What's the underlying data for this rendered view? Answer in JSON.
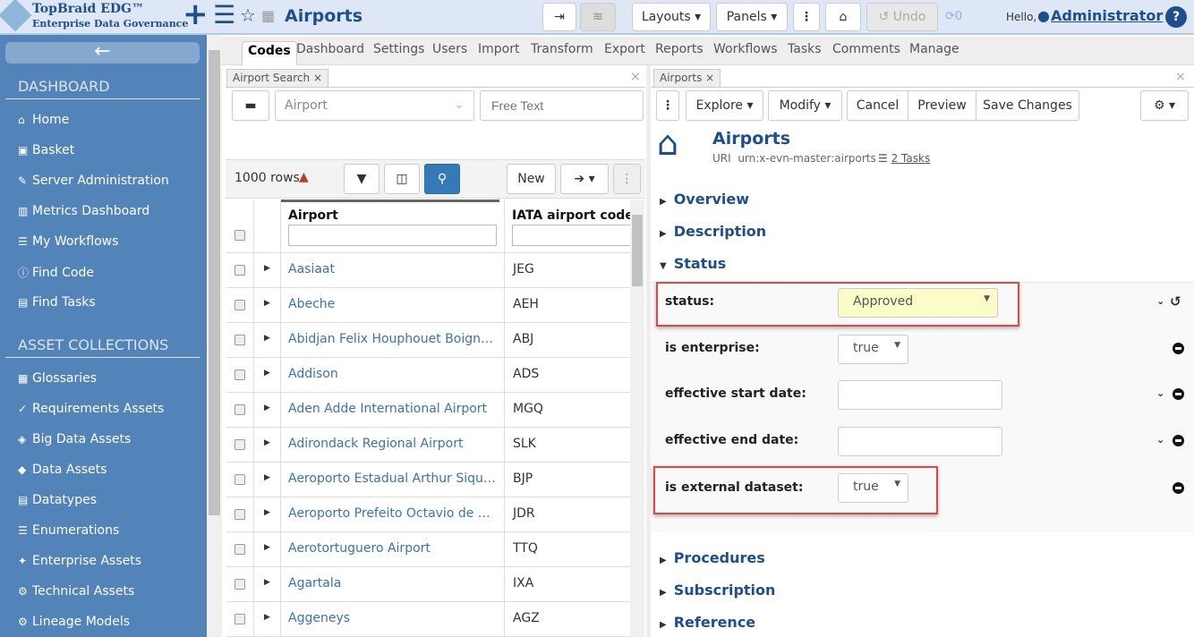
{
  "header": {
    "brand_line1": "TopBraid EDG™",
    "brand_line2": "Enterprise Data Governance",
    "title": "Airports",
    "layouts": "Layouts",
    "panels": "Panels",
    "undo": "Undo",
    "sync_count": "0",
    "hello": "Hello,",
    "user": "Administrator",
    "icons": [
      "plus-icon",
      "menu-icon",
      "star-icon",
      "grid-icon",
      "indent-icon",
      "layers-icon",
      "more-icon",
      "home-icon",
      "undo-icon",
      "sync-icon",
      "user-icon",
      "help-icon"
    ]
  },
  "sidebar": {
    "dashboard_heading": "DASHBOARD",
    "dashboard_items": [
      {
        "icon": "⌂",
        "label": "Home"
      },
      {
        "icon": "▣",
        "label": "Basket"
      },
      {
        "icon": "✎",
        "label": "Server Administration"
      },
      {
        "icon": "▥",
        "label": "Metrics Dashboard"
      },
      {
        "icon": "☰",
        "label": "My Workflows"
      },
      {
        "icon": "ⓘ",
        "label": "Find Code"
      },
      {
        "icon": "▤",
        "label": "Find Tasks"
      }
    ],
    "assets_heading": "ASSET COLLECTIONS",
    "asset_items": [
      {
        "icon": "▦",
        "label": "Glossaries"
      },
      {
        "icon": "✓",
        "label": "Requirements Assets"
      },
      {
        "icon": "◈",
        "label": "Big Data Assets"
      },
      {
        "icon": "◆",
        "label": "Data Assets"
      },
      {
        "icon": "▤",
        "label": "Datatypes"
      },
      {
        "icon": "☰",
        "label": "Enumerations"
      },
      {
        "icon": "✦",
        "label": "Enterprise Assets"
      },
      {
        "icon": "⚙",
        "label": "Technical Assets"
      },
      {
        "icon": "⚙",
        "label": "Lineage Models"
      }
    ]
  },
  "tabs": [
    "Codes",
    "Dashboard",
    "Settings",
    "Users",
    "Import",
    "Transform",
    "Export",
    "Reports",
    "Workflows",
    "Tasks",
    "Comments",
    "Manage"
  ],
  "search_panel": {
    "tab": "Airport Search",
    "type_value": "Airport",
    "free_text_placeholder": "Free Text",
    "row_count": "1000 rows",
    "new_label": "New",
    "columns": [
      "Airport",
      "IATA airport code"
    ],
    "rows": [
      {
        "name": "Aasiaat",
        "code": "JEG"
      },
      {
        "name": "Abeche",
        "code": "AEH"
      },
      {
        "name": "Abidjan Felix Houphouet Boigny International Airport",
        "code": "ABJ"
      },
      {
        "name": "Addison",
        "code": "ADS"
      },
      {
        "name": "Aden Adde International Airport",
        "code": "MGQ"
      },
      {
        "name": "Adirondack Regional Airport",
        "code": "SLK"
      },
      {
        "name": "Aeroporto Estadual Arthur Siqueira",
        "code": "BJP"
      },
      {
        "name": "Aeroporto Prefeito Octavio de Almeida Neves",
        "code": "JDR"
      },
      {
        "name": "Aerotortuguero Airport",
        "code": "TTQ"
      },
      {
        "name": "Agartala",
        "code": "IXA"
      },
      {
        "name": "Aggeneys",
        "code": "AGZ"
      }
    ]
  },
  "resource_panel": {
    "tab": "Airports",
    "explore": "Explore",
    "modify": "Modify",
    "cancel": "Cancel",
    "preview": "Preview",
    "save": "Save Changes",
    "title": "Airports",
    "uri_label": "URI",
    "uri": "urn:x-evn-master:airports",
    "tasks": "2 Tasks",
    "sections": [
      "Overview",
      "Description",
      "Status",
      "Procedures",
      "Subscription",
      "Reference"
    ],
    "properties": {
      "status_label": "status:",
      "status_value": "Approved",
      "enterprise_label": "is enterprise:",
      "enterprise_value": "true",
      "start_label": "effective start date:",
      "start_value": "",
      "end_label": "effective end date:",
      "end_value": "",
      "external_label": "is external dataset:",
      "external_value": "true"
    }
  },
  "colors": {
    "sidebar": "#5283b9",
    "brand": "#1f4e8c",
    "link": "#3a73b0",
    "highlight": "#e84444",
    "status_bg": "#fcfcc8"
  }
}
